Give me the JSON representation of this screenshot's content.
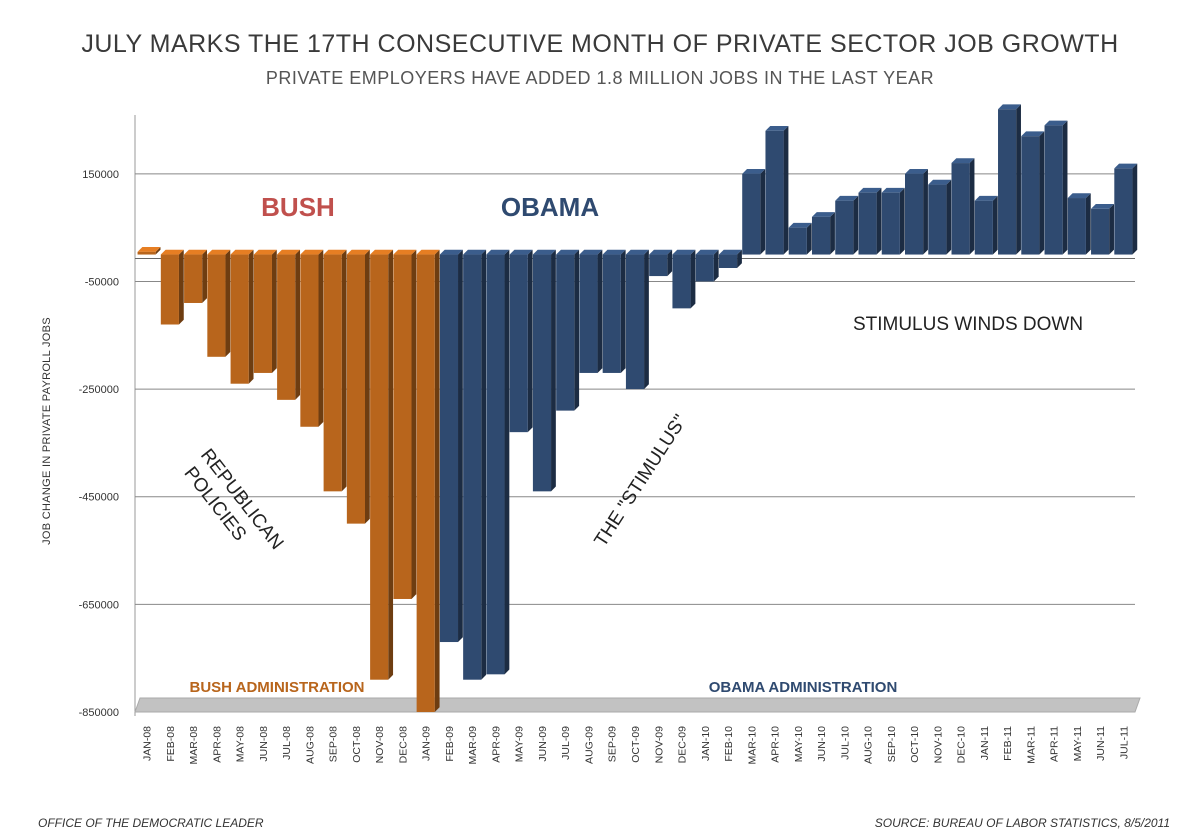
{
  "title": "JULY MARKS THE 17TH CONSECUTIVE MONTH OF PRIVATE SECTOR JOB GROWTH",
  "subtitle": "PRIVATE EMPLOYERS HAVE ADDED 1.8 MILLION JOBS IN THE LAST YEAR",
  "footer_left": "OFFICE OF THE DEMOCRATIC LEADER",
  "footer_right": "SOURCE: BUREAU OF LABOR STATISTICS, 8/5/2011",
  "colors": {
    "bush": "#b8651c",
    "obama": "#2f4a70",
    "bush_label": "#c0504d",
    "obama_label": "#2f4a70"
  },
  "chart_data": {
    "type": "bar",
    "ylabel": "JOB CHANGE IN PRIVATE PAYROLL JOBS",
    "ylim": [
      -850000,
      250000
    ],
    "yticks": [
      150000,
      -50000,
      -250000,
      -450000,
      -650000,
      -850000
    ],
    "ytick_labels": [
      "150000",
      "-50000",
      "-250000",
      "-450000",
      "-650000",
      "-850000"
    ],
    "grid": true,
    "categories": [
      "JAN-08",
      "FEB-08",
      "MAR-08",
      "APR-08",
      "MAY-08",
      "JUN-08",
      "JUL-08",
      "AUG-08",
      "SEP-08",
      "OCT-08",
      "NOV-08",
      "DEC-08",
      "JAN-09",
      "FEB-09",
      "MAR-09",
      "APR-09",
      "MAY-09",
      "JUN-09",
      "JUL-09",
      "AUG-09",
      "SEP-09",
      "OCT-09",
      "NOV-09",
      "DEC-09",
      "JAN-10",
      "FEB-10",
      "MAR-10",
      "APR-10",
      "MAY-10",
      "JUN-10",
      "JUL-10",
      "AUG-10",
      "SEP-10",
      "OCT-10",
      "NOV-10",
      "DEC-10",
      "JAN-11",
      "FEB-11",
      "MAR-11",
      "APR-11",
      "MAY-11",
      "JUN-11",
      "JUL-11"
    ],
    "series": [
      {
        "name": "BUSH ADMINISTRATION",
        "color": "#b8651c",
        "values": [
          5000,
          -130000,
          -90000,
          -190000,
          -240000,
          -220000,
          -270000,
          -320000,
          -440000,
          -500000,
          -790000,
          -640000,
          -850000,
          null,
          null,
          null,
          null,
          null,
          null,
          null,
          null,
          null,
          null,
          null,
          null,
          null,
          null,
          null,
          null,
          null,
          null,
          null,
          null,
          null,
          null,
          null,
          null,
          null,
          null,
          null,
          null,
          null,
          null
        ]
      },
      {
        "name": "OBAMA ADMINISTRATION",
        "color": "#2f4a70",
        "values": [
          null,
          null,
          null,
          null,
          null,
          null,
          null,
          null,
          null,
          null,
          null,
          null,
          null,
          -720000,
          -790000,
          -780000,
          -330000,
          -440000,
          -290000,
          -220000,
          -220000,
          -250000,
          -40000,
          -100000,
          -50000,
          -25000,
          150000,
          230000,
          50000,
          70000,
          100000,
          115000,
          115000,
          150000,
          130000,
          170000,
          100000,
          270000,
          220000,
          240000,
          105000,
          85000,
          160000
        ]
      }
    ],
    "annotations": [
      {
        "text": "BUSH",
        "color": "#c0504d"
      },
      {
        "text": "OBAMA",
        "color": "#2f4a70"
      },
      {
        "text": "STIMULUS WINDS DOWN",
        "color": "#222222"
      },
      {
        "text": "REPUBLICAN\nPOLICIES",
        "color": "#222222"
      },
      {
        "text": "THE \"STIMULUS\"",
        "color": "#222222"
      },
      {
        "text": "BUSH ADMINISTRATION",
        "color": "#b8651c"
      },
      {
        "text": "OBAMA ADMINISTRATION",
        "color": "#2f4a70"
      }
    ]
  }
}
